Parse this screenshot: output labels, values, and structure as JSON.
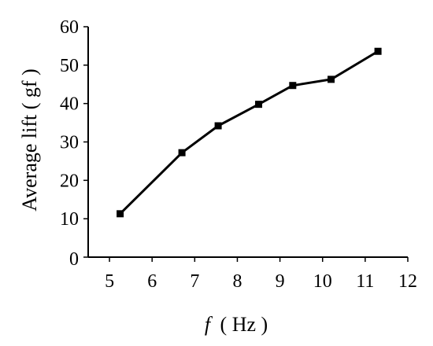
{
  "chart_data": {
    "type": "line",
    "title": "",
    "xlabel_var": "f",
    "xlabel_unit": "( Hz )",
    "ylabel": "Average lift ( gf )",
    "xlim": [
      4.5,
      12
    ],
    "ylim": [
      0,
      60
    ],
    "xticks": [
      5,
      6,
      7,
      8,
      9,
      10,
      11,
      12
    ],
    "yticks": [
      0,
      10,
      20,
      30,
      40,
      50,
      60
    ],
    "grid": false,
    "series": [
      {
        "x": [
          5.25,
          6.7,
          7.55,
          8.5,
          9.3,
          10.2,
          11.3
        ],
        "y": [
          11.3,
          27.2,
          34.2,
          39.8,
          44.7,
          46.3,
          53.6
        ]
      }
    ],
    "marker": "square",
    "line_color": "#000000"
  }
}
